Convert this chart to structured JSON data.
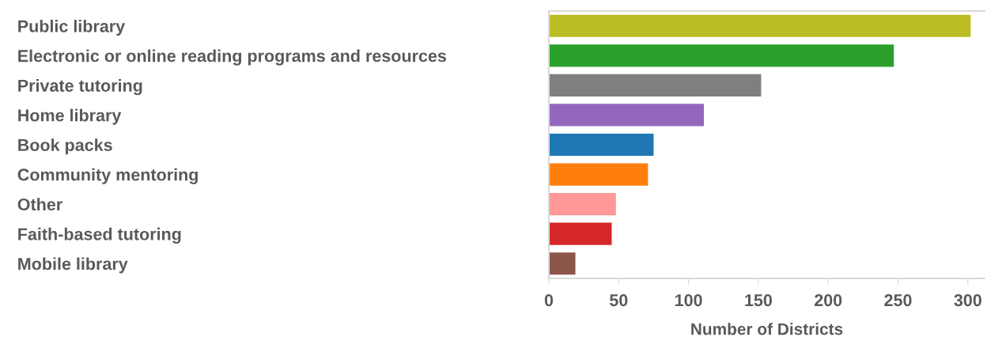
{
  "chart_data": {
    "type": "bar",
    "orientation": "horizontal",
    "xlabel": "Number of Districts",
    "categories": [
      "Public library",
      "Electronic or online reading programs and resources",
      "Private tutoring",
      "Home library",
      "Book packs",
      "Community mentoring",
      "Other",
      "Faith-based tutoring",
      "Mobile library"
    ],
    "values": [
      302,
      247,
      152,
      111,
      75,
      71,
      48,
      45,
      19
    ],
    "colors": [
      "#bcbd22",
      "#2ca02c",
      "#7f7f7f",
      "#9467bd",
      "#1f77b4",
      "#ff7f0e",
      "#ff9896",
      "#d62728",
      "#8c564b"
    ],
    "xlim": [
      0,
      312
    ],
    "xticks": [
      0,
      50,
      100,
      150,
      200,
      250,
      300
    ],
    "grid": false,
    "legend": false
  }
}
